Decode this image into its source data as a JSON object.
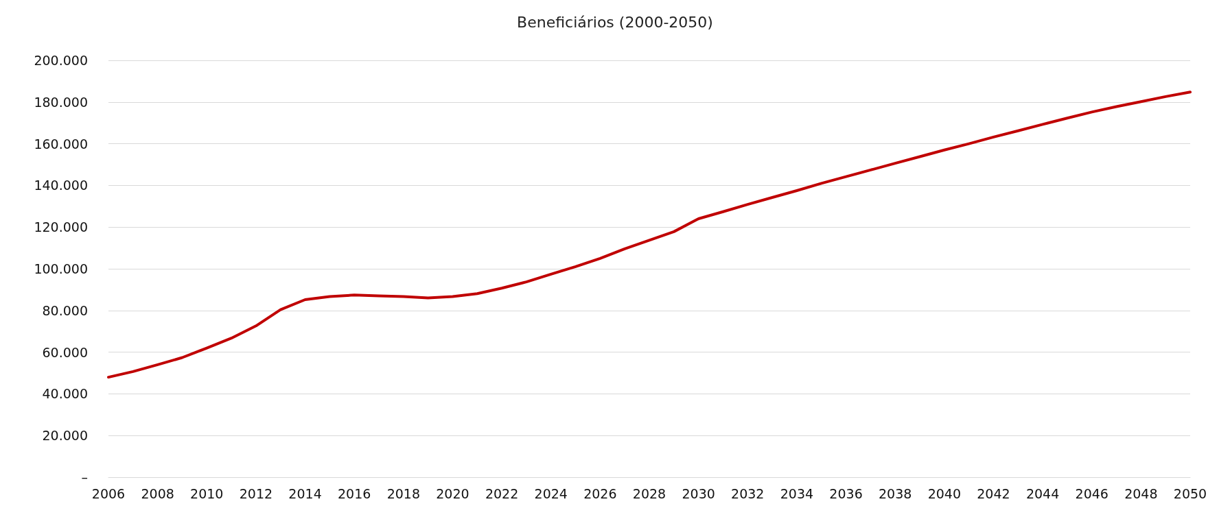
{
  "chart_data": {
    "type": "line",
    "title": "Beneficiários (2000-2050)",
    "categories": [
      "2006",
      null,
      "2008",
      null,
      "2010",
      null,
      "2012",
      null,
      "2014",
      null,
      "2016",
      null,
      "2018",
      null,
      "2020",
      null,
      "2022",
      null,
      "2024",
      null,
      "2026",
      null,
      "2028",
      null,
      "2030",
      null,
      "2032",
      null,
      "2034",
      null,
      "2036",
      null,
      "2038",
      null,
      "2040",
      null,
      "2042",
      null,
      "2044",
      null,
      "2046",
      null,
      "2048",
      null,
      "2050"
    ],
    "series": [
      {
        "color": "#c00000",
        "values": [
          48000,
          50700,
          54000,
          57400,
          62000,
          66700,
          72600,
          80400,
          85200,
          86700,
          87400,
          87000,
          86700,
          86000,
          86700,
          88100,
          90700,
          93700,
          97400,
          101000,
          105000,
          109600,
          113700,
          117800,
          124000,
          127400,
          130900,
          134200,
          137500,
          141000,
          144200,
          147400,
          150600,
          153800,
          157000,
          160000,
          163200,
          166200,
          169300,
          172300,
          175200,
          177800,
          180200,
          182600,
          184800
        ]
      }
    ],
    "ylim": [
      0,
      200000
    ],
    "yticks": [
      {
        "value": 0,
        "label": "–"
      },
      {
        "value": 20000,
        "label": "20.000"
      },
      {
        "value": 40000,
        "label": "40.000"
      },
      {
        "value": 60000,
        "label": "60.000"
      },
      {
        "value": 80000,
        "label": "80.000"
      },
      {
        "value": 100000,
        "label": "100.000"
      },
      {
        "value": 120000,
        "label": "120.000"
      },
      {
        "value": 140000,
        "label": "140.000"
      },
      {
        "value": 160000,
        "label": "160.000"
      },
      {
        "value": 180000,
        "label": "180.000"
      },
      {
        "value": 200000,
        "label": "200.000"
      }
    ],
    "grid": "y",
    "marker": "none",
    "line_style": "solid"
  }
}
